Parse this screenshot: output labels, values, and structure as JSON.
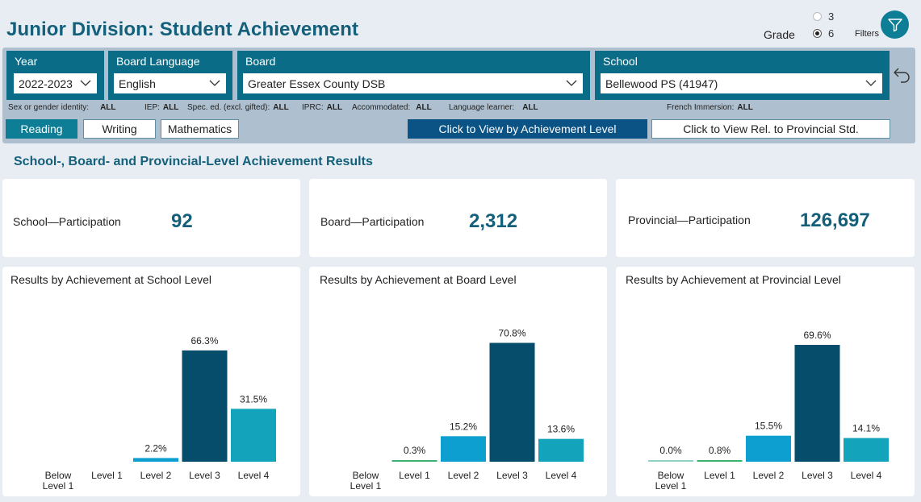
{
  "page": {
    "title": "Junior Division: Student Achievement"
  },
  "grade": {
    "label": "Grade",
    "options": [
      "3",
      "6"
    ],
    "selected": "6"
  },
  "filters_button": {
    "label": "Filters",
    "icon": "funnel-icon"
  },
  "slicers": {
    "year": {
      "title": "Year",
      "value": "2022-2023"
    },
    "language": {
      "title": "Board Language",
      "value": "English"
    },
    "board": {
      "title": "Board",
      "value": "Greater Essex County DSB"
    },
    "school": {
      "title": "School",
      "value": "Bellewood PS (41947)"
    }
  },
  "criteria": [
    {
      "label": "Sex or gender identity:",
      "value": "ALL"
    },
    {
      "label": "IEP:",
      "value": "ALL"
    },
    {
      "label": "Spec. ed. (excl. gifted):",
      "value": "ALL"
    },
    {
      "label": "IPRC:",
      "value": "ALL"
    },
    {
      "label": "Accommodated:",
      "value": "ALL"
    },
    {
      "label": "Language learner:",
      "value": "ALL"
    },
    {
      "label": "French Immersion:",
      "value": "ALL"
    }
  ],
  "subject_tabs": [
    {
      "label": "Reading",
      "active": true
    },
    {
      "label": "Writing",
      "active": false
    },
    {
      "label": "Mathematics",
      "active": false
    }
  ],
  "view_buttons": {
    "achievement": "Click to View by Achievement Level",
    "provincial": "Click to View Rel. to Provincial Std."
  },
  "section_title": "School-, Board- and Provincial-Level Achievement Results",
  "kpis": [
    {
      "label": "School—Participation",
      "value": "92"
    },
    {
      "label": "Board—Participation",
      "value": "2,312"
    },
    {
      "label": "Provincial—Participation",
      "value": "126,697"
    }
  ],
  "colors": {
    "brand": "#14607a",
    "slicer_bg": "#0a6c86",
    "level_below": "#8fd3c4",
    "level_1": "#3cb371",
    "level_2": "#0c9fd0",
    "level_3": "#064c6b",
    "level_4": "#13a3ba"
  },
  "chart_data": [
    {
      "type": "bar",
      "title": "Results by Achievement at School Level",
      "categories": [
        "Below Level 1",
        "Level 1",
        "Level 2",
        "Level 3",
        "Level 4"
      ],
      "values": [
        null,
        null,
        2.2,
        66.3,
        31.5
      ],
      "labels": [
        "",
        "",
        "2.2%",
        "66.3%",
        "31.5%"
      ]
    },
    {
      "type": "bar",
      "title": "Results by Achievement at Board Level",
      "categories": [
        "Below Level 1",
        "Level 1",
        "Level 2",
        "Level 3",
        "Level 4"
      ],
      "values": [
        null,
        0.3,
        15.2,
        70.8,
        13.6
      ],
      "labels": [
        "",
        "0.3%",
        "15.2%",
        "70.8%",
        "13.6%"
      ]
    },
    {
      "type": "bar",
      "title": "Results by Achievement at Provincial Level",
      "categories": [
        "Below Level 1",
        "Level 1",
        "Level 2",
        "Level 3",
        "Level 4"
      ],
      "values": [
        0.0,
        0.8,
        15.5,
        69.6,
        14.1
      ],
      "labels": [
        "0.0%",
        "0.8%",
        "15.5%",
        "69.6%",
        "14.1%"
      ]
    }
  ]
}
